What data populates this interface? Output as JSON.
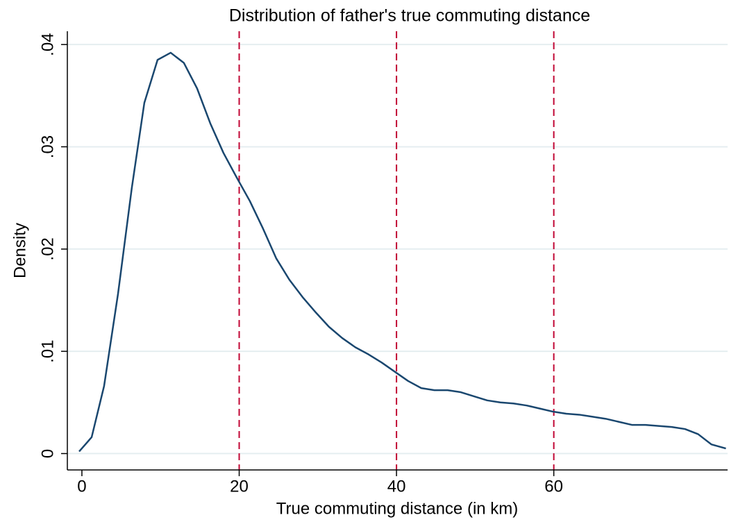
{
  "chart_data": {
    "type": "line",
    "title": "Distribution of father's true commuting distance",
    "xlabel": "True commuting distance (in km)",
    "ylabel": "Density",
    "x": [
      -0.35,
      1.24,
      2.82,
      4.59,
      6.35,
      7.94,
      9.62,
      11.29,
      12.97,
      14.65,
      16.32,
      18.0,
      19.68,
      21.35,
      23.03,
      24.7,
      26.38,
      28.06,
      29.74,
      31.41,
      33.09,
      34.76,
      36.44,
      38.12,
      39.79,
      41.47,
      43.15,
      44.82,
      46.5,
      48.18,
      49.85,
      51.53,
      53.21,
      54.88,
      56.56,
      58.24,
      59.91,
      61.59,
      63.26,
      64.94,
      66.62,
      68.29,
      69.97,
      71.65,
      73.32,
      75.0,
      76.68,
      78.35,
      80.03,
      81.88
    ],
    "values": [
      0.0002,
      0.0016,
      0.0066,
      0.0156,
      0.026,
      0.0343,
      0.0385,
      0.0392,
      0.0382,
      0.0357,
      0.0323,
      0.0294,
      0.027,
      0.0247,
      0.022,
      0.0191,
      0.017,
      0.0153,
      0.0138,
      0.0124,
      0.0113,
      0.0104,
      0.0097,
      0.0089,
      0.008,
      0.0071,
      0.0064,
      0.0062,
      0.0062,
      0.006,
      0.0056,
      0.0052,
      0.005,
      0.0049,
      0.0047,
      0.0044,
      0.0041,
      0.0039,
      0.0038,
      0.0036,
      0.0034,
      0.0031,
      0.0028,
      0.0028,
      0.0027,
      0.0026,
      0.0024,
      0.0019,
      0.0009,
      0.0005
    ],
    "color": "#1a476f",
    "xlim": [
      -1.85,
      82.1
    ],
    "ylim": [
      -0.0016,
      0.0413
    ],
    "xticks": [
      0,
      20,
      40,
      60
    ],
    "yticks": [
      0,
      {
        "value": 0.01,
        "label": ".01"
      },
      {
        "value": 0.02,
        "label": ".02"
      },
      {
        "value": 0.03,
        "label": ".03"
      },
      {
        "value": 0.04,
        "label": ".04"
      }
    ],
    "grid": true,
    "grid_color": "#e5eef0",
    "reference_lines": {
      "x": [
        20,
        40,
        60
      ],
      "color": "#c10534",
      "dashed": true
    }
  }
}
